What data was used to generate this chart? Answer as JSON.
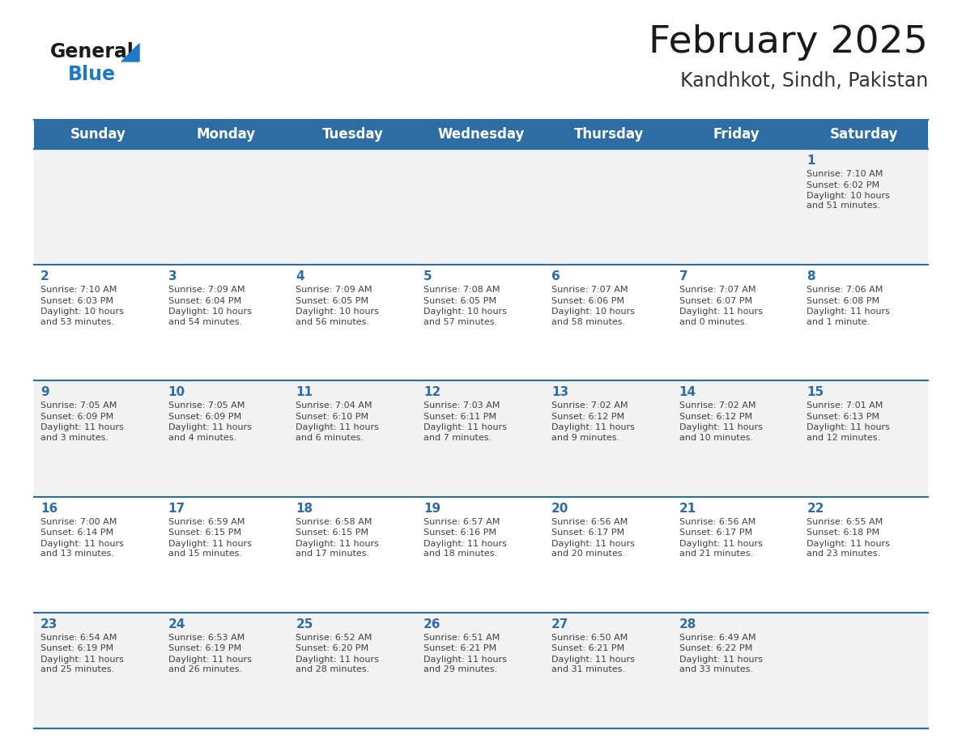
{
  "title": "February 2025",
  "subtitle": "Kandhkot, Sindh, Pakistan",
  "header_bg": "#2E6DA4",
  "header_text_color": "#FFFFFF",
  "cell_bg_even": "#FFFFFF",
  "cell_bg_odd": "#F2F2F2",
  "day_number_color": "#2E6DA4",
  "info_text_color": "#404040",
  "border_color": "#2E6DA4",
  "days_of_week": [
    "Sunday",
    "Monday",
    "Tuesday",
    "Wednesday",
    "Thursday",
    "Friday",
    "Saturday"
  ],
  "weeks": [
    [
      {
        "day": null,
        "sunrise": null,
        "sunset": null,
        "daylight": null
      },
      {
        "day": null,
        "sunrise": null,
        "sunset": null,
        "daylight": null
      },
      {
        "day": null,
        "sunrise": null,
        "sunset": null,
        "daylight": null
      },
      {
        "day": null,
        "sunrise": null,
        "sunset": null,
        "daylight": null
      },
      {
        "day": null,
        "sunrise": null,
        "sunset": null,
        "daylight": null
      },
      {
        "day": null,
        "sunrise": null,
        "sunset": null,
        "daylight": null
      },
      {
        "day": 1,
        "sunrise": "7:10 AM",
        "sunset": "6:02 PM",
        "daylight": "10 hours\nand 51 minutes."
      }
    ],
    [
      {
        "day": 2,
        "sunrise": "7:10 AM",
        "sunset": "6:03 PM",
        "daylight": "10 hours\nand 53 minutes."
      },
      {
        "day": 3,
        "sunrise": "7:09 AM",
        "sunset": "6:04 PM",
        "daylight": "10 hours\nand 54 minutes."
      },
      {
        "day": 4,
        "sunrise": "7:09 AM",
        "sunset": "6:05 PM",
        "daylight": "10 hours\nand 56 minutes."
      },
      {
        "day": 5,
        "sunrise": "7:08 AM",
        "sunset": "6:05 PM",
        "daylight": "10 hours\nand 57 minutes."
      },
      {
        "day": 6,
        "sunrise": "7:07 AM",
        "sunset": "6:06 PM",
        "daylight": "10 hours\nand 58 minutes."
      },
      {
        "day": 7,
        "sunrise": "7:07 AM",
        "sunset": "6:07 PM",
        "daylight": "11 hours\nand 0 minutes."
      },
      {
        "day": 8,
        "sunrise": "7:06 AM",
        "sunset": "6:08 PM",
        "daylight": "11 hours\nand 1 minute."
      }
    ],
    [
      {
        "day": 9,
        "sunrise": "7:05 AM",
        "sunset": "6:09 PM",
        "daylight": "11 hours\nand 3 minutes."
      },
      {
        "day": 10,
        "sunrise": "7:05 AM",
        "sunset": "6:09 PM",
        "daylight": "11 hours\nand 4 minutes."
      },
      {
        "day": 11,
        "sunrise": "7:04 AM",
        "sunset": "6:10 PM",
        "daylight": "11 hours\nand 6 minutes."
      },
      {
        "day": 12,
        "sunrise": "7:03 AM",
        "sunset": "6:11 PM",
        "daylight": "11 hours\nand 7 minutes."
      },
      {
        "day": 13,
        "sunrise": "7:02 AM",
        "sunset": "6:12 PM",
        "daylight": "11 hours\nand 9 minutes."
      },
      {
        "day": 14,
        "sunrise": "7:02 AM",
        "sunset": "6:12 PM",
        "daylight": "11 hours\nand 10 minutes."
      },
      {
        "day": 15,
        "sunrise": "7:01 AM",
        "sunset": "6:13 PM",
        "daylight": "11 hours\nand 12 minutes."
      }
    ],
    [
      {
        "day": 16,
        "sunrise": "7:00 AM",
        "sunset": "6:14 PM",
        "daylight": "11 hours\nand 13 minutes."
      },
      {
        "day": 17,
        "sunrise": "6:59 AM",
        "sunset": "6:15 PM",
        "daylight": "11 hours\nand 15 minutes."
      },
      {
        "day": 18,
        "sunrise": "6:58 AM",
        "sunset": "6:15 PM",
        "daylight": "11 hours\nand 17 minutes."
      },
      {
        "day": 19,
        "sunrise": "6:57 AM",
        "sunset": "6:16 PM",
        "daylight": "11 hours\nand 18 minutes."
      },
      {
        "day": 20,
        "sunrise": "6:56 AM",
        "sunset": "6:17 PM",
        "daylight": "11 hours\nand 20 minutes."
      },
      {
        "day": 21,
        "sunrise": "6:56 AM",
        "sunset": "6:17 PM",
        "daylight": "11 hours\nand 21 minutes."
      },
      {
        "day": 22,
        "sunrise": "6:55 AM",
        "sunset": "6:18 PM",
        "daylight": "11 hours\nand 23 minutes."
      }
    ],
    [
      {
        "day": 23,
        "sunrise": "6:54 AM",
        "sunset": "6:19 PM",
        "daylight": "11 hours\nand 25 minutes."
      },
      {
        "day": 24,
        "sunrise": "6:53 AM",
        "sunset": "6:19 PM",
        "daylight": "11 hours\nand 26 minutes."
      },
      {
        "day": 25,
        "sunrise": "6:52 AM",
        "sunset": "6:20 PM",
        "daylight": "11 hours\nand 28 minutes."
      },
      {
        "day": 26,
        "sunrise": "6:51 AM",
        "sunset": "6:21 PM",
        "daylight": "11 hours\nand 29 minutes."
      },
      {
        "day": 27,
        "sunrise": "6:50 AM",
        "sunset": "6:21 PM",
        "daylight": "11 hours\nand 31 minutes."
      },
      {
        "day": 28,
        "sunrise": "6:49 AM",
        "sunset": "6:22 PM",
        "daylight": "11 hours\nand 33 minutes."
      },
      {
        "day": null,
        "sunrise": null,
        "sunset": null,
        "daylight": null
      }
    ]
  ],
  "logo_general_color": "#1a1a1a",
  "logo_blue_color": "#2079C7",
  "logo_triangle_color": "#2079C7",
  "title_color": "#1a1a1a",
  "subtitle_color": "#333333",
  "title_fontsize": 34,
  "subtitle_fontsize": 17,
  "header_fontsize": 12,
  "day_num_fontsize": 11,
  "cell_text_fontsize": 8
}
